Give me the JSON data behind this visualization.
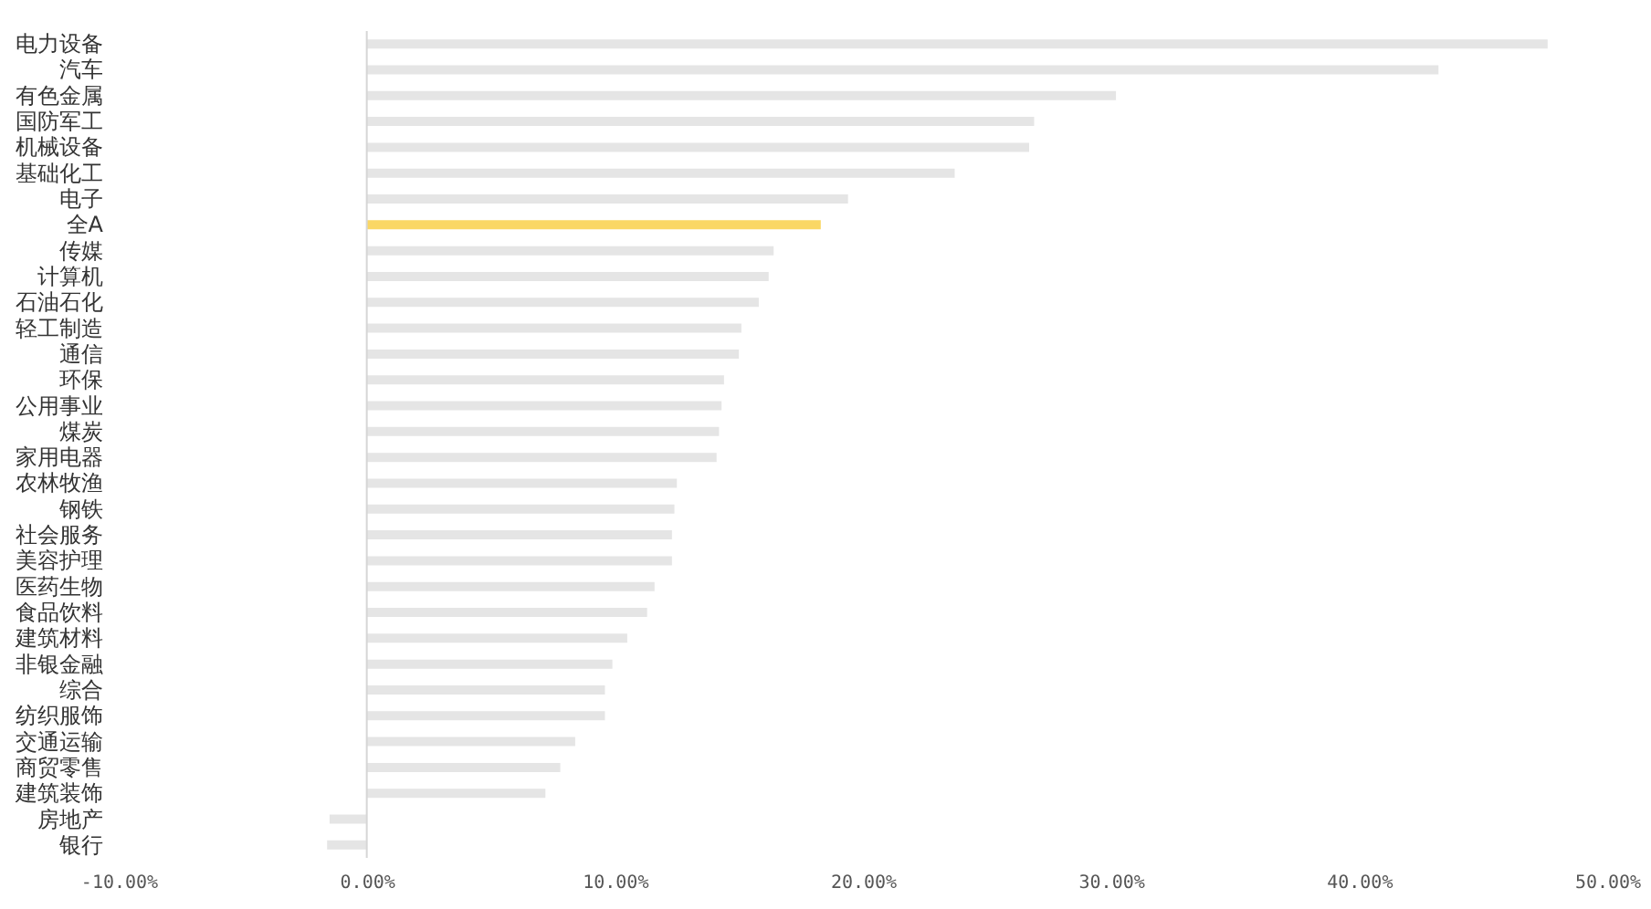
{
  "chart_data": {
    "type": "bar",
    "orientation": "horizontal",
    "categories": [
      "电力设备",
      "汽车",
      "有色金属",
      "国防军工",
      "机械设备",
      "基础化工",
      "电子",
      "全A",
      "传媒",
      "计算机",
      "石油石化",
      "轻工制造",
      "通信",
      "环保",
      "公用事业",
      "煤炭",
      "家用电器",
      "农林牧渔",
      "钢铁",
      "社会服务",
      "美容护理",
      "医药生物",
      "食品饮料",
      "建筑材料",
      "非银金融",
      "综合",
      "纺织服饰",
      "交通运输",
      "商贸零售",
      "建筑装饰",
      "房地产",
      "银行"
    ],
    "values": [
      47.6,
      43.2,
      30.2,
      26.9,
      26.7,
      23.7,
      19.4,
      18.3,
      16.4,
      16.2,
      15.8,
      15.1,
      15.0,
      14.4,
      14.3,
      14.2,
      14.1,
      12.5,
      12.4,
      12.3,
      12.3,
      11.6,
      11.3,
      10.5,
      9.9,
      9.6,
      9.6,
      8.4,
      7.8,
      7.2,
      -1.5,
      -1.6
    ],
    "colors": [
      "#e5e5e5",
      "#e5e5e5",
      "#e5e5e5",
      "#e5e5e5",
      "#e5e5e5",
      "#e5e5e5",
      "#e5e5e5",
      "#fad765",
      "#e5e5e5",
      "#e5e5e5",
      "#e5e5e5",
      "#e5e5e5",
      "#e5e5e5",
      "#e5e5e5",
      "#e5e5e5",
      "#e5e5e5",
      "#e5e5e5",
      "#e5e5e5",
      "#e5e5e5",
      "#e5e5e5",
      "#e5e5e5",
      "#e5e5e5",
      "#e5e5e5",
      "#e5e5e5",
      "#e5e5e5",
      "#e5e5e5",
      "#e5e5e5",
      "#e5e5e5",
      "#e5e5e5",
      "#e5e5e5",
      "#e5e5e5",
      "#e5e5e5"
    ],
    "xlim": [
      -10,
      50
    ],
    "xticks": [
      {
        "value": -10,
        "label": "-10.00%"
      },
      {
        "value": 0,
        "label": "0.00%"
      },
      {
        "value": 10,
        "label": "10.00%"
      },
      {
        "value": 20,
        "label": "20.00%"
      },
      {
        "value": 30,
        "label": "30.00%"
      },
      {
        "value": 40,
        "label": "40.00%"
      },
      {
        "value": 50,
        "label": "50.00%"
      }
    ],
    "ref_lines": [
      {
        "axis": "x",
        "value": 0,
        "color": "#d6d6d6"
      }
    ]
  }
}
